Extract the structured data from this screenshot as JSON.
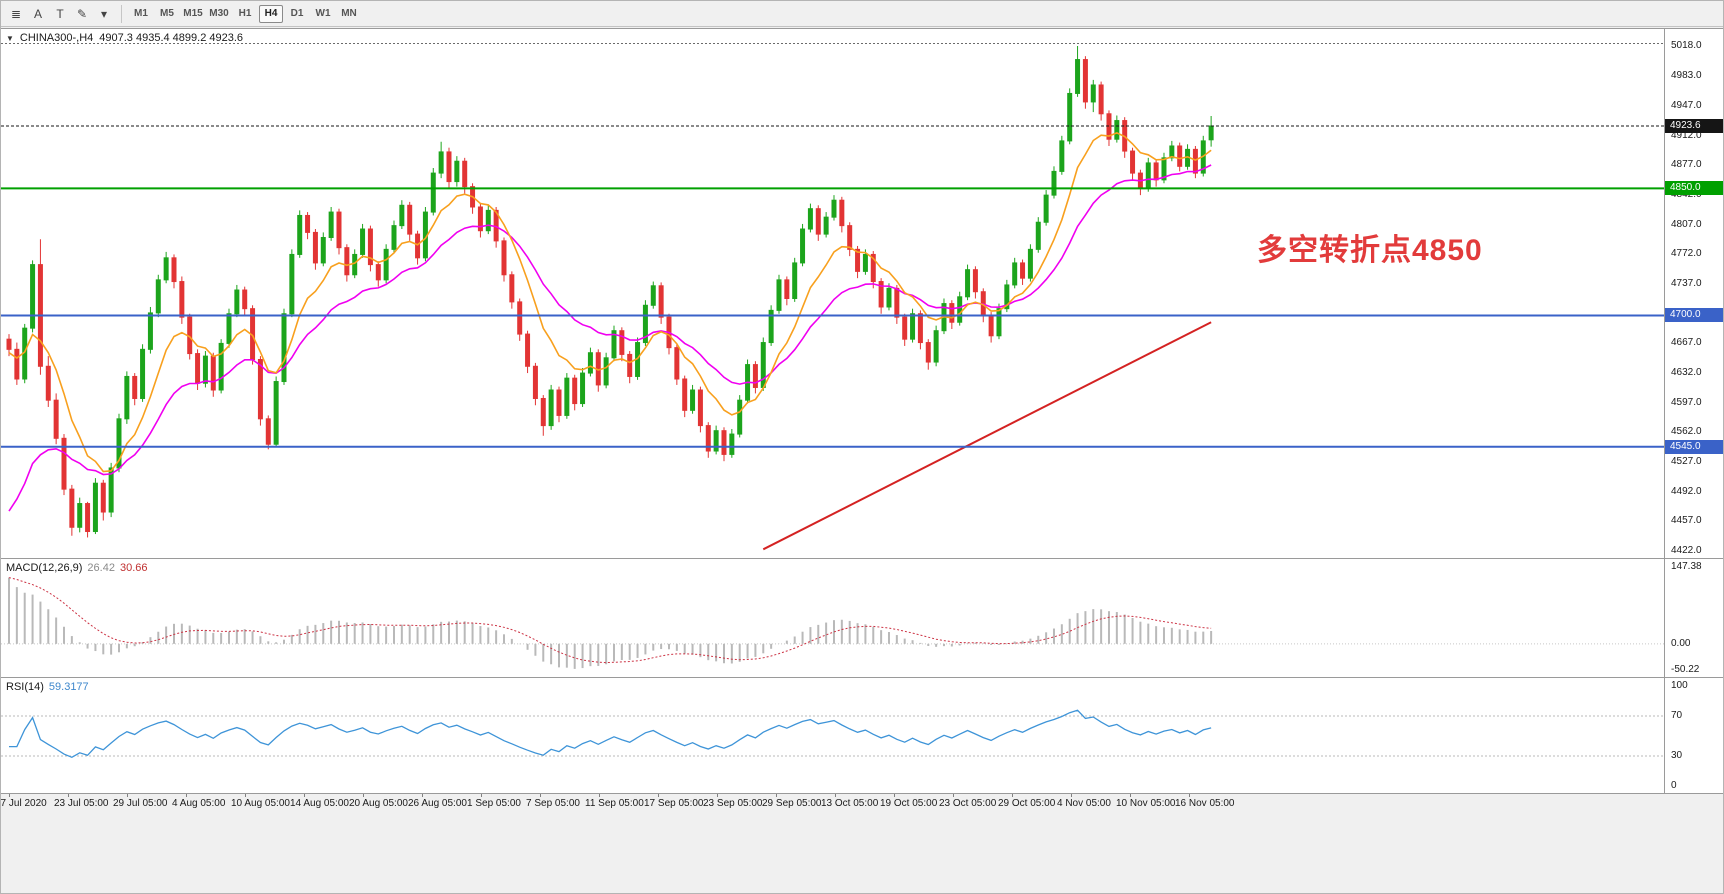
{
  "icons": {
    "collapse": "▼",
    "menu": "≣",
    "pencil": "✎",
    "caret": "▾"
  },
  "toolbar": {
    "tools": [
      {
        "name": "indicators-list-icon",
        "glyph": "≣"
      },
      {
        "name": "cursor-tool-button",
        "glyph": "A"
      },
      {
        "name": "text-tool-button",
        "glyph": "T"
      },
      {
        "name": "drawings-tool-button",
        "glyph": "✎"
      },
      {
        "name": "drawings-caret-icon",
        "glyph": "▾"
      }
    ],
    "timeframes": [
      {
        "label": "M1",
        "active": false
      },
      {
        "label": "M5",
        "active": false
      },
      {
        "label": "M15",
        "active": false
      },
      {
        "label": "M30",
        "active": false
      },
      {
        "label": "H1",
        "active": false
      },
      {
        "label": "H4",
        "active": true
      },
      {
        "label": "D1",
        "active": false
      },
      {
        "label": "W1",
        "active": false
      },
      {
        "label": "MN",
        "active": false
      }
    ]
  },
  "chart": {
    "symbol": "CHINA300-,H4",
    "ohlc": "4907.3 4935.4 4899.2 4923.6",
    "price_axis": {
      "min": 4422.0,
      "max": 5018.0,
      "ticks": [
        "5018.0",
        "4983.0",
        "4947.0",
        "4912.0",
        "4877.0",
        "4842.0",
        "4807.0",
        "4772.0",
        "4737.0",
        "4702.0",
        "4667.0",
        "4632.0",
        "4597.0",
        "4562.0",
        "4527.0",
        "4492.0",
        "4457.0",
        "4422.0"
      ]
    },
    "price_line": {
      "price": 4923.6,
      "label": "4923.6",
      "color": "#151515"
    },
    "dotted_line": {
      "price": 5021,
      "color": "#6a6a6a"
    },
    "hlines": [
      {
        "price": 4850.0,
        "label": "4850.0",
        "color": "#00A000"
      },
      {
        "price": 4700.0,
        "label": "4700.0",
        "color": "#3A62C8"
      },
      {
        "price": 4545.0,
        "label": "4545.0",
        "color": "#3A62C8"
      }
    ],
    "trendline": {
      "from_index": 96,
      "from_price": 4424,
      "to_index": 153,
      "to_price": 4692,
      "color": "#D42222"
    },
    "annotation": {
      "text": "多空转折点4850",
      "color": "#E23B3B"
    },
    "colors": {
      "up": "#1CA41C",
      "down": "#E23434",
      "ma_fast": "#F8A01E",
      "ma_slow": "#F000F0"
    },
    "time_axis": [
      "17 Jul 2020",
      "23 Jul 05:00",
      "29 Jul 05:00",
      "4 Aug 05:00",
      "10 Aug 05:00",
      "14 Aug 05:00",
      "20 Aug 05:00",
      "26 Aug 05:00",
      "1 Sep 05:00",
      "7 Sep 05:00",
      "11 Sep 05:00",
      "17 Sep 05:00",
      "23 Sep 05:00",
      "29 Sep 05:00",
      "13 Oct 05:00",
      "19 Oct 05:00",
      "23 Oct 05:00",
      "29 Oct 05:00",
      "4 Nov 05:00",
      "10 Nov 05:00",
      "16 Nov 05:00"
    ]
  },
  "macd": {
    "label": "MACD(12,26,9)",
    "value1": "26.42",
    "value2": "30.66",
    "axis": [
      "147.38",
      "0.00",
      "-50.22"
    ],
    "range": {
      "min": -50.22,
      "max": 147.38
    },
    "histogram_color": "#B9B9B9",
    "signal_color": "#CC3344"
  },
  "rsi": {
    "label": "RSI(14)",
    "value": "59.3177",
    "axis": [
      "100",
      "70",
      "30",
      "0"
    ],
    "levels": [
      70,
      30
    ],
    "line_color": "#3E94D8",
    "range": {
      "min": 0,
      "max": 100
    }
  },
  "chart_data": {
    "type": "candlestick",
    "title": "CHINA300- H4 with MACD(12,26,9) and RSI(14)",
    "symbol": "CHINA300-",
    "timeframe": "H4",
    "ylim": [
      4422.0,
      5018.0
    ],
    "x_labels": [
      "17 Jul 2020",
      "23 Jul 05:00",
      "29 Jul 05:00",
      "4 Aug 05:00",
      "10 Aug 05:00",
      "14 Aug 05:00",
      "20 Aug 05:00",
      "26 Aug 05:00",
      "1 Sep 05:00",
      "7 Sep 05:00",
      "11 Sep 05:00",
      "17 Sep 05:00",
      "23 Sep 05:00",
      "29 Sep 05:00",
      "13 Oct 05:00",
      "19 Oct 05:00",
      "23 Oct 05:00",
      "29 Oct 05:00",
      "4 Nov 05:00",
      "10 Nov 05:00",
      "16 Nov 05:00"
    ],
    "overlays": [
      {
        "name": "fast-ma",
        "type": "ema",
        "period": 9,
        "color": "#F8A01E"
      },
      {
        "name": "slow-ma",
        "type": "ema",
        "period": 21,
        "color": "#F000F0"
      },
      {
        "name": "trendline",
        "from_index": 96,
        "from_price": 4424,
        "to_index": 153,
        "to_price": 4692,
        "color": "#D42222"
      },
      {
        "name": "support-resistance",
        "levels": [
          4850.0,
          4700.0,
          4545.0
        ]
      }
    ],
    "ohlc": [
      [
        4672,
        4678,
        4652,
        4660
      ],
      [
        4660,
        4668,
        4618,
        4625
      ],
      [
        4625,
        4690,
        4620,
        4685
      ],
      [
        4685,
        4765,
        4680,
        4760
      ],
      [
        4760,
        4790,
        4630,
        4640
      ],
      [
        4640,
        4652,
        4592,
        4600
      ],
      [
        4600,
        4608,
        4548,
        4555
      ],
      [
        4555,
        4560,
        4488,
        4495
      ],
      [
        4495,
        4500,
        4440,
        4450
      ],
      [
        4450,
        4485,
        4444,
        4478
      ],
      [
        4478,
        4480,
        4438,
        4445
      ],
      [
        4445,
        4508,
        4442,
        4502
      ],
      [
        4502,
        4506,
        4458,
        4468
      ],
      [
        4468,
        4526,
        4462,
        4520
      ],
      [
        4520,
        4584,
        4515,
        4578
      ],
      [
        4578,
        4634,
        4572,
        4628
      ],
      [
        4628,
        4632,
        4594,
        4602
      ],
      [
        4602,
        4666,
        4598,
        4660
      ],
      [
        4660,
        4710,
        4655,
        4703
      ],
      [
        4703,
        4748,
        4698,
        4742
      ],
      [
        4742,
        4775,
        4738,
        4768
      ],
      [
        4768,
        4772,
        4732,
        4740
      ],
      [
        4740,
        4746,
        4690,
        4698
      ],
      [
        4698,
        4702,
        4648,
        4655
      ],
      [
        4655,
        4660,
        4612,
        4620
      ],
      [
        4620,
        4658,
        4615,
        4652
      ],
      [
        4652,
        4656,
        4604,
        4612
      ],
      [
        4612,
        4672,
        4608,
        4667
      ],
      [
        4667,
        4708,
        4662,
        4702
      ],
      [
        4702,
        4736,
        4698,
        4730
      ],
      [
        4730,
        4734,
        4700,
        4708
      ],
      [
        4708,
        4712,
        4642,
        4648
      ],
      [
        4648,
        4652,
        4570,
        4578
      ],
      [
        4578,
        4582,
        4542,
        4548
      ],
      [
        4548,
        4628,
        4545,
        4622
      ],
      [
        4622,
        4708,
        4618,
        4702
      ],
      [
        4702,
        4778,
        4698,
        4772
      ],
      [
        4772,
        4824,
        4768,
        4818
      ],
      [
        4818,
        4822,
        4790,
        4798
      ],
      [
        4798,
        4802,
        4754,
        4762
      ],
      [
        4762,
        4798,
        4758,
        4792
      ],
      [
        4792,
        4828,
        4788,
        4822
      ],
      [
        4822,
        4826,
        4772,
        4780
      ],
      [
        4780,
        4784,
        4740,
        4748
      ],
      [
        4748,
        4778,
        4744,
        4772
      ],
      [
        4772,
        4808,
        4768,
        4802
      ],
      [
        4802,
        4806,
        4752,
        4760
      ],
      [
        4760,
        4764,
        4734,
        4742
      ],
      [
        4742,
        4784,
        4738,
        4778
      ],
      [
        4778,
        4812,
        4774,
        4806
      ],
      [
        4806,
        4836,
        4802,
        4830
      ],
      [
        4830,
        4834,
        4788,
        4796
      ],
      [
        4796,
        4800,
        4760,
        4768
      ],
      [
        4768,
        4828,
        4764,
        4822
      ],
      [
        4822,
        4874,
        4818,
        4868
      ],
      [
        4868,
        4905,
        4862,
        4893
      ],
      [
        4893,
        4898,
        4850,
        4858
      ],
      [
        4858,
        4888,
        4852,
        4882
      ],
      [
        4882,
        4886,
        4844,
        4852
      ],
      [
        4852,
        4856,
        4820,
        4828
      ],
      [
        4828,
        4832,
        4792,
        4800
      ],
      [
        4800,
        4830,
        4796,
        4824
      ],
      [
        4824,
        4828,
        4780,
        4788
      ],
      [
        4788,
        4792,
        4740,
        4748
      ],
      [
        4748,
        4752,
        4708,
        4716
      ],
      [
        4716,
        4720,
        4670,
        4678
      ],
      [
        4678,
        4682,
        4632,
        4640
      ],
      [
        4640,
        4644,
        4594,
        4602
      ],
      [
        4602,
        4606,
        4558,
        4570
      ],
      [
        4570,
        4618,
        4565,
        4612
      ],
      [
        4612,
        4616,
        4574,
        4582
      ],
      [
        4582,
        4632,
        4578,
        4626
      ],
      [
        4626,
        4630,
        4588,
        4596
      ],
      [
        4596,
        4638,
        4592,
        4632
      ],
      [
        4632,
        4662,
        4628,
        4656
      ],
      [
        4656,
        4660,
        4610,
        4618
      ],
      [
        4618,
        4656,
        4614,
        4650
      ],
      [
        4650,
        4688,
        4646,
        4682
      ],
      [
        4682,
        4686,
        4646,
        4654
      ],
      [
        4654,
        4658,
        4620,
        4628
      ],
      [
        4628,
        4674,
        4624,
        4668
      ],
      [
        4668,
        4718,
        4664,
        4712
      ],
      [
        4712,
        4740,
        4708,
        4735
      ],
      [
        4735,
        4739,
        4690,
        4698
      ],
      [
        4698,
        4702,
        4654,
        4662
      ],
      [
        4662,
        4666,
        4618,
        4625
      ],
      [
        4625,
        4629,
        4580,
        4588
      ],
      [
        4588,
        4618,
        4584,
        4612
      ],
      [
        4612,
        4616,
        4562,
        4570
      ],
      [
        4570,
        4574,
        4532,
        4540
      ],
      [
        4540,
        4570,
        4536,
        4564
      ],
      [
        4564,
        4568,
        4528,
        4536
      ],
      [
        4536,
        4566,
        4532,
        4560
      ],
      [
        4560,
        4606,
        4556,
        4600
      ],
      [
        4600,
        4648,
        4596,
        4642
      ],
      [
        4642,
        4646,
        4608,
        4615
      ],
      [
        4615,
        4674,
        4611,
        4668
      ],
      [
        4668,
        4712,
        4664,
        4706
      ],
      [
        4706,
        4748,
        4702,
        4742
      ],
      [
        4742,
        4746,
        4712,
        4720
      ],
      [
        4720,
        4768,
        4716,
        4762
      ],
      [
        4762,
        4808,
        4758,
        4802
      ],
      [
        4802,
        4832,
        4798,
        4826
      ],
      [
        4826,
        4830,
        4788,
        4796
      ],
      [
        4796,
        4822,
        4792,
        4816
      ],
      [
        4816,
        4842,
        4812,
        4836
      ],
      [
        4836,
        4840,
        4798,
        4806
      ],
      [
        4806,
        4810,
        4770,
        4778
      ],
      [
        4778,
        4782,
        4744,
        4752
      ],
      [
        4752,
        4778,
        4748,
        4772
      ],
      [
        4772,
        4776,
        4732,
        4740
      ],
      [
        4740,
        4744,
        4702,
        4710
      ],
      [
        4710,
        4738,
        4706,
        4732
      ],
      [
        4732,
        4736,
        4690,
        4698
      ],
      [
        4698,
        4702,
        4664,
        4672
      ],
      [
        4672,
        4708,
        4668,
        4702
      ],
      [
        4702,
        4706,
        4660,
        4668
      ],
      [
        4668,
        4672,
        4636,
        4645
      ],
      [
        4645,
        4688,
        4640,
        4682
      ],
      [
        4682,
        4720,
        4678,
        4714
      ],
      [
        4714,
        4718,
        4684,
        4692
      ],
      [
        4692,
        4728,
        4688,
        4722
      ],
      [
        4722,
        4760,
        4718,
        4754
      ],
      [
        4754,
        4758,
        4720,
        4728
      ],
      [
        4728,
        4732,
        4692,
        4700
      ],
      [
        4700,
        4704,
        4668,
        4676
      ],
      [
        4676,
        4714,
        4672,
        4708
      ],
      [
        4708,
        4742,
        4704,
        4736
      ],
      [
        4736,
        4768,
        4732,
        4762
      ],
      [
        4762,
        4766,
        4736,
        4744
      ],
      [
        4744,
        4784,
        4740,
        4778
      ],
      [
        4778,
        4816,
        4774,
        4810
      ],
      [
        4810,
        4848,
        4806,
        4842
      ],
      [
        4842,
        4876,
        4838,
        4870
      ],
      [
        4870,
        4912,
        4866,
        4906
      ],
      [
        4906,
        4968,
        4902,
        4962
      ],
      [
        4962,
        5018,
        4958,
        5002
      ],
      [
        5002,
        5006,
        4944,
        4952
      ],
      [
        4952,
        4978,
        4940,
        4972
      ],
      [
        4972,
        4976,
        4930,
        4938
      ],
      [
        4938,
        4942,
        4900,
        4908
      ],
      [
        4908,
        4936,
        4904,
        4930
      ],
      [
        4930,
        4934,
        4886,
        4894
      ],
      [
        4894,
        4898,
        4860,
        4868
      ],
      [
        4868,
        4872,
        4842,
        4850
      ],
      [
        4850,
        4886,
        4846,
        4880
      ],
      [
        4880,
        4884,
        4852,
        4860
      ],
      [
        4860,
        4892,
        4856,
        4886
      ],
      [
        4886,
        4906,
        4882,
        4900
      ],
      [
        4900,
        4904,
        4870,
        4876
      ],
      [
        4876,
        4902,
        4872,
        4896
      ],
      [
        4896,
        4900,
        4862,
        4868
      ],
      [
        4868,
        4912,
        4864,
        4906
      ],
      [
        4907.3,
        4935.4,
        4899.2,
        4923.6
      ]
    ]
  }
}
